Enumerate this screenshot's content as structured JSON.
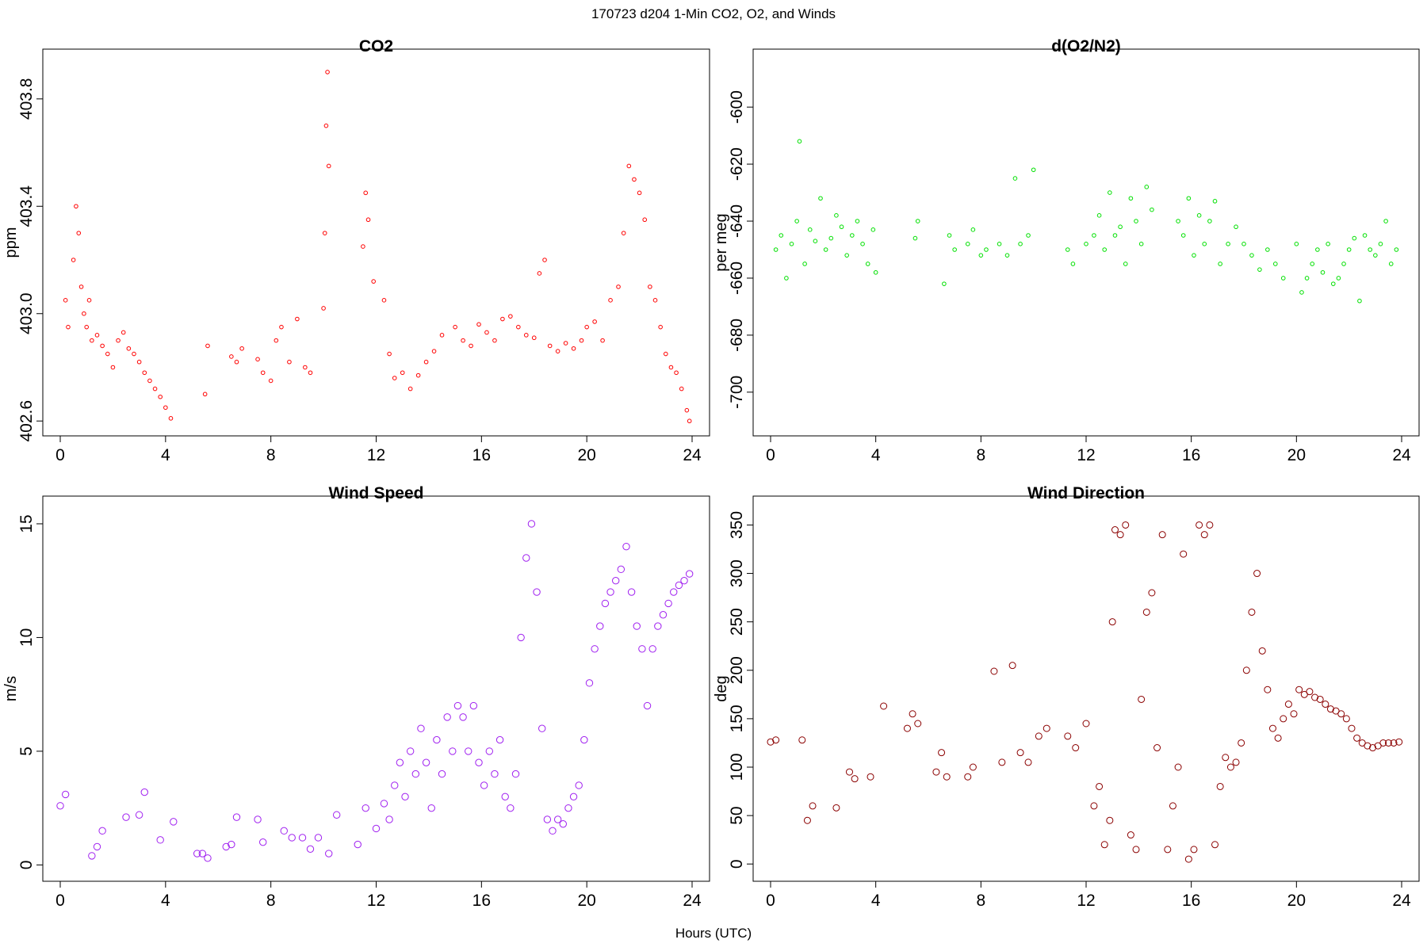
{
  "figure": {
    "suptitle": "170723   d204   1-Min CO2, O2, and Winds",
    "xlabel": "Hours (UTC)"
  },
  "chart_data": [
    {
      "type": "scatter",
      "title": "CO2",
      "xlabel": "",
      "ylabel": "ppm",
      "xlim": [
        0,
        24
      ],
      "ylim": [
        402.58,
        403.95
      ],
      "xticks": [
        "0",
        "4",
        "8",
        "12",
        "16",
        "20",
        "24"
      ],
      "yticks": [
        "402.6",
        "403.0",
        "403.4",
        "403.8"
      ],
      "color": "#ff0000",
      "series": [
        {
          "x": [
            0.2,
            0.3,
            0.5,
            0.6,
            0.7,
            0.8,
            0.9,
            1.0,
            1.1,
            1.2,
            1.4,
            1.6,
            1.8,
            2.0,
            2.2,
            2.4,
            2.6,
            2.8,
            3.0,
            3.2,
            3.4,
            3.6,
            3.8,
            4.0,
            4.2,
            5.5,
            5.6,
            6.5,
            6.7,
            6.9,
            7.5,
            7.7,
            8.0,
            8.2,
            8.4,
            8.7,
            9.0,
            9.3,
            9.5,
            10.0,
            10.05,
            10.1,
            10.15,
            10.2,
            11.5,
            11.6,
            11.7,
            11.9,
            12.3,
            12.5,
            12.7,
            13.0,
            13.3,
            13.6,
            13.9,
            14.2,
            14.5,
            15.0,
            15.3,
            15.6,
            15.9,
            16.2,
            16.5,
            16.8,
            17.1,
            17.4,
            17.7,
            18.0,
            18.2,
            18.4,
            18.6,
            18.9,
            19.2,
            19.5,
            19.8,
            20.0,
            20.3,
            20.6,
            20.9,
            21.2,
            21.4,
            21.6,
            21.8,
            22.0,
            22.2,
            22.4,
            22.6,
            22.8,
            23.0,
            23.2,
            23.4,
            23.6,
            23.8,
            23.9
          ],
          "y": [
            403.05,
            402.95,
            403.2,
            403.4,
            403.3,
            403.1,
            403.0,
            402.95,
            403.05,
            402.9,
            402.92,
            402.88,
            402.85,
            402.8,
            402.9,
            402.93,
            402.87,
            402.85,
            402.82,
            402.78,
            402.75,
            402.72,
            402.69,
            402.65,
            402.61,
            402.7,
            402.88,
            402.84,
            402.82,
            402.87,
            402.83,
            402.78,
            402.75,
            402.9,
            402.95,
            402.82,
            402.98,
            402.8,
            402.78,
            403.02,
            403.3,
            403.7,
            403.9,
            403.55,
            403.25,
            403.45,
            403.35,
            403.12,
            403.05,
            402.85,
            402.76,
            402.78,
            402.72,
            402.77,
            402.82,
            402.86,
            402.92,
            402.95,
            402.9,
            402.88,
            402.96,
            402.93,
            402.9,
            402.98,
            402.99,
            402.95,
            402.92,
            402.91,
            403.15,
            403.2,
            402.88,
            402.86,
            402.89,
            402.87,
            402.9,
            402.95,
            402.97,
            402.9,
            403.05,
            403.1,
            403.3,
            403.55,
            403.5,
            403.45,
            403.35,
            403.1,
            403.05,
            402.95,
            402.85,
            402.8,
            402.78,
            402.72,
            402.64,
            402.6
          ]
        }
      ]
    },
    {
      "type": "scatter",
      "title": "d(O2/N2)",
      "xlabel": "",
      "ylabel": "per meg",
      "xlim": [
        0,
        24
      ],
      "ylim": [
        -712,
        -583
      ],
      "xticks": [
        "0",
        "4",
        "8",
        "12",
        "16",
        "20",
        "24"
      ],
      "yticks": [
        "-700",
        "-680",
        "-660",
        "-640",
        "-620",
        "-600"
      ],
      "color": "#00e000",
      "series": [
        {
          "x": [
            0.2,
            0.4,
            0.6,
            0.8,
            1.0,
            1.1,
            1.3,
            1.5,
            1.7,
            1.9,
            2.1,
            2.3,
            2.5,
            2.7,
            2.9,
            3.1,
            3.3,
            3.5,
            3.7,
            3.9,
            4.0,
            5.5,
            5.6,
            6.6,
            6.8,
            7.0,
            7.5,
            7.7,
            8.0,
            8.2,
            8.7,
            9.0,
            9.3,
            9.5,
            9.8,
            10.0,
            11.3,
            11.5,
            12.0,
            12.3,
            12.5,
            12.7,
            12.9,
            13.1,
            13.3,
            13.5,
            13.7,
            13.9,
            14.1,
            14.3,
            14.5,
            15.5,
            15.7,
            15.9,
            16.1,
            16.3,
            16.5,
            16.7,
            16.9,
            17.1,
            17.4,
            17.7,
            18.0,
            18.3,
            18.6,
            18.9,
            19.2,
            19.5,
            20.0,
            20.2,
            20.4,
            20.6,
            20.8,
            21.0,
            21.2,
            21.4,
            21.6,
            21.8,
            22.0,
            22.2,
            22.4,
            22.6,
            22.8,
            23.0,
            23.2,
            23.4,
            23.6,
            23.8
          ],
          "y": [
            -650,
            -645,
            -660,
            -648,
            -640,
            -612,
            -655,
            -643,
            -647,
            -632,
            -650,
            -646,
            -638,
            -642,
            -652,
            -645,
            -640,
            -648,
            -655,
            -643,
            -658,
            -646,
            -640,
            -662,
            -645,
            -650,
            -648,
            -643,
            -652,
            -650,
            -648,
            -652,
            -625,
            -648,
            -645,
            -622,
            -650,
            -655,
            -648,
            -645,
            -638,
            -650,
            -630,
            -645,
            -642,
            -655,
            -632,
            -640,
            -648,
            -628,
            -636,
            -640,
            -645,
            -632,
            -652,
            -638,
            -648,
            -640,
            -633,
            -655,
            -648,
            -642,
            -648,
            -652,
            -657,
            -650,
            -655,
            -660,
            -648,
            -665,
            -660,
            -655,
            -650,
            -658,
            -648,
            -662,
            -660,
            -655,
            -650,
            -646,
            -668,
            -645,
            -650,
            -652,
            -648,
            -640,
            -655,
            -650
          ]
        }
      ]
    },
    {
      "type": "scatter",
      "title": "Wind Speed",
      "xlabel": "",
      "ylabel": "m/s",
      "xlim": [
        0,
        24
      ],
      "ylim": [
        -0.3,
        15.8
      ],
      "xticks": [
        "0",
        "4",
        "8",
        "12",
        "16",
        "20",
        "24"
      ],
      "yticks": [
        "0",
        "5",
        "10",
        "15"
      ],
      "color": "#a020f0",
      "series": [
        {
          "x": [
            0.0,
            0.2,
            1.2,
            1.4,
            1.6,
            2.5,
            3.0,
            3.2,
            3.8,
            4.3,
            5.2,
            5.4,
            5.6,
            6.3,
            6.5,
            6.7,
            7.5,
            7.7,
            8.5,
            8.8,
            9.2,
            9.5,
            9.8,
            10.2,
            10.5,
            11.3,
            11.6,
            12.0,
            12.3,
            12.5,
            12.7,
            12.9,
            13.1,
            13.3,
            13.5,
            13.7,
            13.9,
            14.1,
            14.3,
            14.5,
            14.7,
            14.9,
            15.1,
            15.3,
            15.5,
            15.7,
            15.9,
            16.1,
            16.3,
            16.5,
            16.7,
            16.9,
            17.1,
            17.3,
            17.5,
            17.7,
            17.9,
            18.1,
            18.3,
            18.5,
            18.7,
            18.9,
            19.1,
            19.3,
            19.5,
            19.7,
            19.9,
            20.1,
            20.3,
            20.5,
            20.7,
            20.9,
            21.1,
            21.3,
            21.5,
            21.7,
            21.9,
            22.1,
            22.3,
            22.5,
            22.7,
            22.9,
            23.1,
            23.3,
            23.5,
            23.7,
            23.9
          ],
          "y": [
            2.6,
            3.1,
            0.4,
            0.8,
            1.5,
            2.1,
            2.2,
            3.2,
            1.1,
            1.9,
            0.5,
            0.5,
            0.3,
            0.8,
            0.9,
            2.1,
            2.0,
            1.0,
            1.5,
            1.2,
            1.2,
            0.7,
            1.2,
            0.5,
            2.2,
            0.9,
            2.5,
            1.6,
            2.7,
            2.0,
            3.5,
            4.5,
            3.0,
            5.0,
            4.0,
            6.0,
            4.5,
            2.5,
            5.5,
            4.0,
            6.5,
            5.0,
            7.0,
            6.5,
            5.0,
            7.0,
            4.5,
            3.5,
            5.0,
            4.0,
            5.5,
            3.0,
            2.5,
            4.0,
            10.0,
            13.5,
            15.0,
            12.0,
            6.0,
            2.0,
            1.5,
            2.0,
            1.8,
            2.5,
            3.0,
            3.5,
            5.5,
            8.0,
            9.5,
            10.5,
            11.5,
            12.0,
            12.5,
            13.0,
            14.0,
            12.0,
            10.5,
            9.5,
            7.0,
            9.5,
            10.5,
            11.0,
            11.5,
            12.0,
            12.3,
            12.5,
            12.8
          ]
        }
      ]
    },
    {
      "type": "scatter",
      "title": "Wind Direction",
      "xlabel": "",
      "ylabel": "deg",
      "xlim": [
        0,
        24
      ],
      "ylim": [
        -8,
        370
      ],
      "xticks": [
        "0",
        "4",
        "8",
        "12",
        "16",
        "20",
        "24"
      ],
      "yticks": [
        "0",
        "50",
        "100",
        "150",
        "200",
        "250",
        "300",
        "350"
      ],
      "color": "#8b0000",
      "series": [
        {
          "x": [
            0.0,
            0.2,
            1.2,
            1.4,
            1.6,
            2.5,
            3.0,
            3.2,
            3.8,
            4.3,
            5.2,
            5.4,
            5.6,
            6.3,
            6.5,
            6.7,
            7.5,
            7.7,
            8.5,
            8.8,
            9.2,
            9.5,
            9.8,
            10.2,
            10.5,
            11.3,
            11.6,
            12.0,
            12.3,
            12.5,
            12.7,
            12.9,
            13.0,
            13.1,
            13.3,
            13.5,
            13.7,
            13.9,
            14.1,
            14.3,
            14.5,
            14.7,
            14.9,
            15.1,
            15.3,
            15.5,
            15.7,
            15.9,
            16.1,
            16.3,
            16.5,
            16.7,
            16.9,
            17.1,
            17.3,
            17.5,
            17.7,
            17.9,
            18.1,
            18.3,
            18.5,
            18.7,
            18.9,
            19.1,
            19.3,
            19.5,
            19.7,
            19.9,
            20.1,
            20.3,
            20.5,
            20.7,
            20.9,
            21.1,
            21.3,
            21.5,
            21.7,
            21.9,
            22.1,
            22.3,
            22.5,
            22.7,
            22.9,
            23.1,
            23.3,
            23.5,
            23.7,
            23.9
          ],
          "y": [
            126,
            128,
            128,
            45,
            60,
            58,
            95,
            88,
            90,
            163,
            140,
            155,
            145,
            95,
            115,
            90,
            90,
            100,
            199,
            105,
            205,
            115,
            105,
            132,
            140,
            132,
            120,
            145,
            60,
            80,
            20,
            45,
            250,
            345,
            340,
            350,
            30,
            15,
            170,
            260,
            280,
            120,
            340,
            15,
            60,
            100,
            320,
            5,
            15,
            350,
            340,
            350,
            20,
            80,
            110,
            100,
            105,
            125,
            200,
            260,
            300,
            220,
            180,
            140,
            130,
            150,
            165,
            155,
            180,
            175,
            178,
            172,
            170,
            165,
            160,
            158,
            155,
            150,
            140,
            130,
            125,
            122,
            120,
            122,
            125,
            125,
            125,
            126
          ]
        }
      ]
    }
  ]
}
